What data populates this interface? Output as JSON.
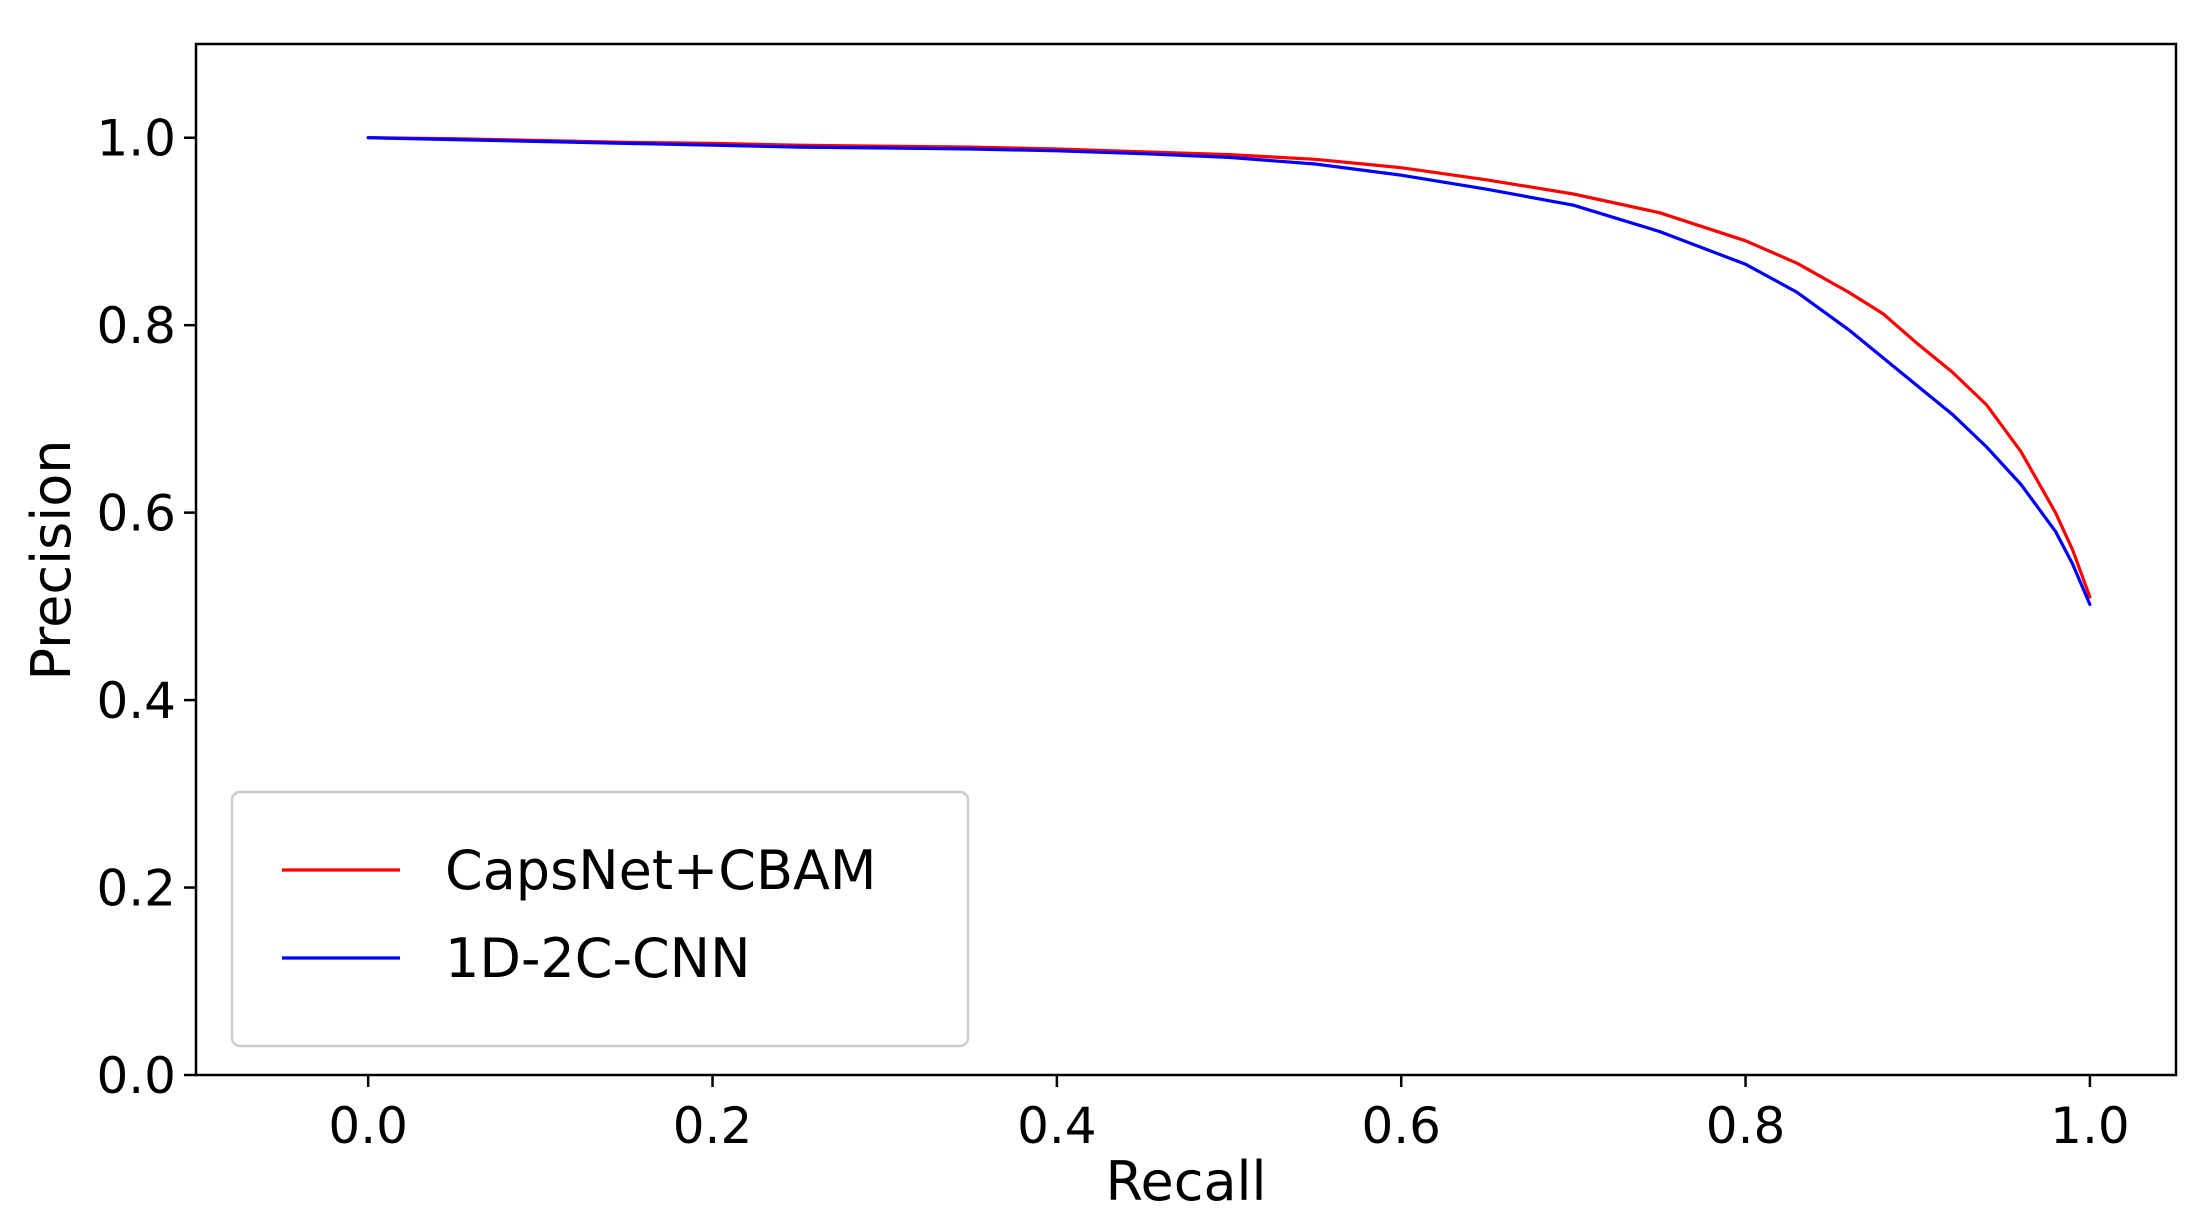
{
  "chart_data": {
    "type": "line",
    "title": "",
    "xlabel": "Recall",
    "ylabel": "Precision",
    "xlim": [
      -0.1,
      1.05
    ],
    "ylim": [
      0.0,
      1.1
    ],
    "xticks": [
      0.0,
      0.2,
      0.4,
      0.6,
      0.8,
      1.0
    ],
    "xtick_labels": [
      "0.0",
      "0.2",
      "0.4",
      "0.6",
      "0.8",
      "1.0"
    ],
    "yticks": [
      0.0,
      0.2,
      0.4,
      0.6,
      0.8,
      1.0
    ],
    "ytick_labels": [
      "0.0",
      "0.2",
      "0.4",
      "0.6",
      "0.8",
      "1.0"
    ],
    "grid": false,
    "legend_position": "lower-left",
    "series": [
      {
        "name": "CapsNet+CBAM",
        "color": "#ff0000",
        "x": [
          0.0,
          0.05,
          0.1,
          0.15,
          0.2,
          0.25,
          0.3,
          0.35,
          0.4,
          0.45,
          0.5,
          0.55,
          0.6,
          0.65,
          0.7,
          0.75,
          0.8,
          0.83,
          0.86,
          0.88,
          0.9,
          0.92,
          0.94,
          0.96,
          0.98,
          0.99,
          1.0
        ],
        "y": [
          1.0,
          0.999,
          0.997,
          0.995,
          0.994,
          0.992,
          0.991,
          0.99,
          0.988,
          0.985,
          0.982,
          0.977,
          0.968,
          0.955,
          0.94,
          0.92,
          0.89,
          0.866,
          0.835,
          0.812,
          0.78,
          0.75,
          0.715,
          0.665,
          0.6,
          0.56,
          0.51
        ]
      },
      {
        "name": "1D-2C-CNN",
        "color": "#0000ff",
        "x": [
          0.0,
          0.05,
          0.1,
          0.15,
          0.2,
          0.25,
          0.3,
          0.35,
          0.4,
          0.45,
          0.5,
          0.55,
          0.6,
          0.65,
          0.7,
          0.75,
          0.8,
          0.83,
          0.86,
          0.88,
          0.9,
          0.92,
          0.94,
          0.96,
          0.98,
          0.99,
          1.0
        ],
        "y": [
          1.0,
          0.998,
          0.996,
          0.994,
          0.992,
          0.99,
          0.989,
          0.988,
          0.986,
          0.983,
          0.979,
          0.972,
          0.96,
          0.945,
          0.928,
          0.9,
          0.865,
          0.835,
          0.795,
          0.765,
          0.735,
          0.705,
          0.67,
          0.63,
          0.58,
          0.545,
          0.502
        ]
      }
    ]
  }
}
